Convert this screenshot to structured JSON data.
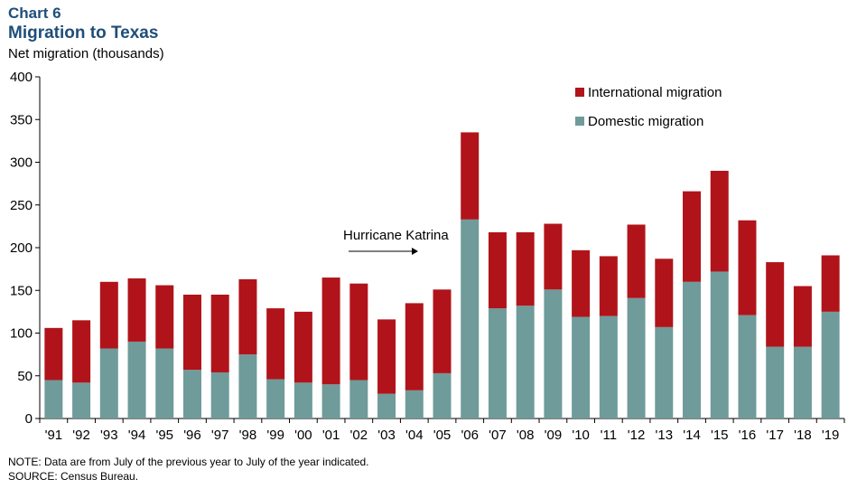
{
  "header": {
    "chart_label": "Chart 6",
    "title": "Migration to Texas",
    "y_unit": "Net migration (thousands)"
  },
  "annotation": {
    "text": "Hurricane  Katrina",
    "target_category": "'06"
  },
  "footer": {
    "note": "NOTE: Data are from July of the previous  year to July of the year indicated.",
    "source": "SOURCE: Census Bureau."
  },
  "colors": {
    "domestic": "#6f9b9a",
    "international": "#b0141a",
    "axis": "#000000"
  },
  "chart_data": {
    "type": "bar",
    "stacked": true,
    "categories": [
      "'91",
      "'92",
      "'93",
      "'94",
      "'95",
      "'96",
      "'97",
      "'98",
      "'99",
      "'00",
      "'01",
      "'02",
      "'03",
      "'04",
      "'05",
      "'06",
      "'07",
      "'08",
      "'09",
      "'10",
      "'11",
      "'12",
      "'13",
      "'14",
      "'15",
      "'16",
      "'17",
      "'18",
      "'19"
    ],
    "series": [
      {
        "name": "Domestic migration",
        "values": [
          45,
          42,
          82,
          90,
          82,
          57,
          54,
          75,
          46,
          42,
          40,
          45,
          29,
          33,
          53,
          233,
          129,
          132,
          151,
          119,
          120,
          141,
          107,
          160,
          172,
          121,
          84,
          84,
          125
        ]
      },
      {
        "name": "International migration",
        "values": [
          61,
          73,
          78,
          74,
          74,
          88,
          91,
          88,
          83,
          83,
          125,
          113,
          87,
          102,
          98,
          102,
          89,
          86,
          77,
          78,
          70,
          86,
          80,
          106,
          118,
          111,
          99,
          71,
          66
        ]
      }
    ],
    "ylim": [
      0,
      400
    ],
    "yticks": [
      0,
      50,
      100,
      150,
      200,
      250,
      300,
      350,
      400
    ],
    "xlabel": "",
    "ylabel": "",
    "legend": [
      "International migration",
      "Domestic migration"
    ],
    "legend_position": "top-right",
    "grid": false
  }
}
